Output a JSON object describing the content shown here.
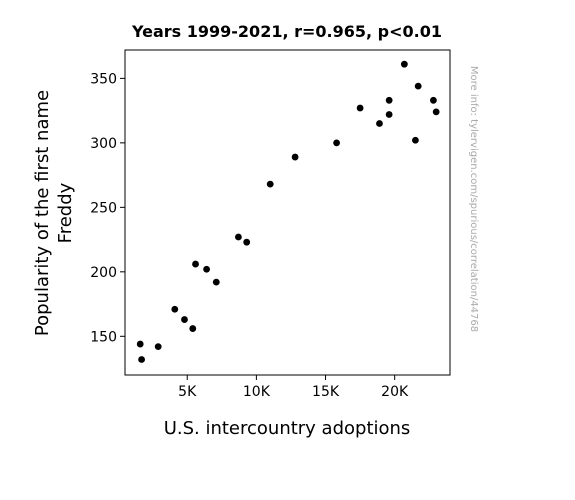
{
  "chart_data": {
    "type": "scatter",
    "title": "Years 1999-2021, r=0.965, p<0.01",
    "xlabel": "U.S. intercountry adoptions",
    "ylabel_lines": [
      "Popularity of the first name",
      "Freddy"
    ],
    "watermark": "More info: tylervigen.com/spurious/correlation/44768",
    "xlim": [
      500,
      24000
    ],
    "ylim": [
      120,
      372
    ],
    "x_ticks": [
      {
        "value": 5000,
        "label": "5K"
      },
      {
        "value": 10000,
        "label": "10K"
      },
      {
        "value": 15000,
        "label": "15K"
      },
      {
        "value": 20000,
        "label": "20K"
      }
    ],
    "y_ticks": [
      {
        "value": 150,
        "label": "150"
      },
      {
        "value": 200,
        "label": "200"
      },
      {
        "value": 250,
        "label": "250"
      },
      {
        "value": 300,
        "label": "300"
      },
      {
        "value": 350,
        "label": "350"
      }
    ],
    "point_color": "#000000",
    "points": [
      {
        "x": 1600,
        "y": 144
      },
      {
        "x": 1700,
        "y": 132
      },
      {
        "x": 2900,
        "y": 142
      },
      {
        "x": 4100,
        "y": 171
      },
      {
        "x": 4800,
        "y": 163
      },
      {
        "x": 5400,
        "y": 156
      },
      {
        "x": 5600,
        "y": 206
      },
      {
        "x": 6400,
        "y": 202
      },
      {
        "x": 7100,
        "y": 192
      },
      {
        "x": 8700,
        "y": 227
      },
      {
        "x": 9300,
        "y": 223
      },
      {
        "x": 11000,
        "y": 268
      },
      {
        "x": 12800,
        "y": 289
      },
      {
        "x": 15800,
        "y": 300
      },
      {
        "x": 17500,
        "y": 327
      },
      {
        "x": 18900,
        "y": 315
      },
      {
        "x": 19600,
        "y": 333
      },
      {
        "x": 19600,
        "y": 322
      },
      {
        "x": 20700,
        "y": 361
      },
      {
        "x": 21500,
        "y": 302
      },
      {
        "x": 21700,
        "y": 344
      },
      {
        "x": 22800,
        "y": 333
      },
      {
        "x": 23000,
        "y": 324
      }
    ]
  }
}
